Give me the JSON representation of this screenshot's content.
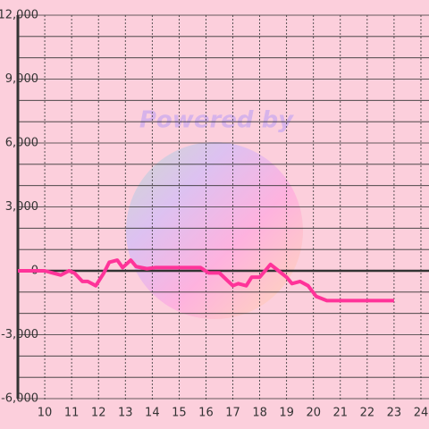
{
  "chart_data": {
    "type": "line",
    "watermark": "Powered by",
    "x": [
      9.0,
      10.0,
      10.3,
      10.6,
      10.9,
      11.1,
      11.4,
      11.6,
      11.9,
      12.2,
      12.4,
      12.7,
      12.9,
      13.2,
      13.4,
      13.8,
      14.1,
      15.8,
      16.1,
      16.5,
      17.0,
      17.2,
      17.5,
      17.7,
      18.0,
      18.4,
      18.7,
      19.0,
      19.2,
      19.5,
      19.8,
      20.1,
      20.5,
      23.0
    ],
    "values": [
      0,
      0,
      -100,
      -200,
      0,
      -100,
      -500,
      -500,
      -700,
      -100,
      400,
      500,
      150,
      500,
      200,
      100,
      150,
      150,
      -100,
      -100,
      -700,
      -600,
      -700,
      -300,
      -300,
      300,
      0,
      -300,
      -600,
      -500,
      -700,
      -1200,
      -1400,
      -1400
    ],
    "color": "#ff3399",
    "xlim": [
      9,
      24.3
    ],
    "xticks": [
      10,
      11,
      12,
      13,
      14,
      15,
      16,
      17,
      18,
      19,
      20,
      21,
      22,
      23,
      24
    ],
    "ylim": [
      -6000,
      12000
    ],
    "yticks": [
      {
        "value": -6000,
        "label": "-6,000"
      },
      {
        "value": -5000,
        "label": ""
      },
      {
        "value": -4000,
        "label": ""
      },
      {
        "value": -3000,
        "label": "-3,000"
      },
      {
        "value": -2000,
        "label": ""
      },
      {
        "value": -1000,
        "label": ""
      },
      0,
      {
        "value": 1000,
        "label": ""
      },
      {
        "value": 2000,
        "label": ""
      },
      {
        "value": 3000,
        "label": "3,000"
      },
      {
        "value": 4000,
        "label": ""
      },
      {
        "value": 5000,
        "label": ""
      },
      {
        "value": 6000,
        "label": "6,000"
      },
      {
        "value": 7000,
        "label": ""
      },
      {
        "value": 8000,
        "label": ""
      },
      {
        "value": 9000,
        "label": "9,000"
      },
      {
        "value": 10000,
        "label": ""
      },
      {
        "value": 11000,
        "label": ""
      },
      {
        "value": 12000,
        "label": "12,000"
      }
    ],
    "grid": true
  }
}
